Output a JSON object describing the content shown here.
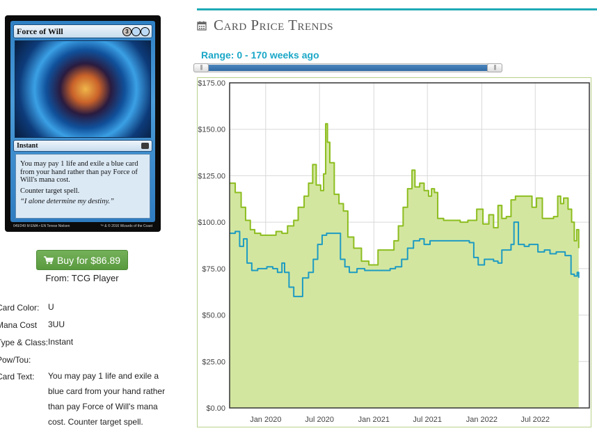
{
  "card": {
    "name": "Force of Will",
    "mana": [
      {
        "symbol": "3",
        "color": "generic"
      },
      {
        "symbol": "",
        "color": "blue"
      },
      {
        "symbol": "",
        "color": "blue"
      }
    ],
    "type_line": "Instant",
    "rules_text": "You may pay 1 life and exile a blue card from your hand rather than pay Force of Will's mana cost.",
    "rules_text_2": "Counter target spell.",
    "flavor_text": "“I alone determine my destiny.”",
    "footer_left": "049/249 M",
    "footer_set": "EMA • EN",
    "footer_artist": "Terese Nielsen",
    "footer_copyright": "™ & © 2016 Wizards of the Coast"
  },
  "buy": {
    "label": "Buy for $86.89",
    "icon": "cart-icon",
    "source": "From: TCG Player",
    "accent": "#5a9a3f"
  },
  "details": [
    {
      "label": "Card Color:",
      "value": "U"
    },
    {
      "label": "Mana Cost",
      "value": "3UU"
    },
    {
      "label": "Type & Class:",
      "value": "Instant"
    },
    {
      "label": "Pow/Tou:",
      "value": ""
    },
    {
      "label": "Card Text:",
      "value": "You may pay 1 life and exile a blue card from your hand rather than pay Force of Will's mana cost. Counter target spell."
    }
  ],
  "section": {
    "title": "Card Price Trends",
    "icon": "calendar-icon",
    "rule_color": "#1eaab7"
  },
  "range": {
    "label": "Range: 0 - 170 weeks ago",
    "min": 0,
    "max": 170
  },
  "chart_data": {
    "type": "area",
    "title": "",
    "xlabel": "",
    "ylabel": "",
    "ylim": [
      0,
      175
    ],
    "y_ticks": [
      "$0.00",
      "$25.00",
      "$50.00",
      "$75.00",
      "$100.00",
      "$125.00",
      "$150.00",
      "$175.00"
    ],
    "x_ticks": [
      "Jan 2020",
      "Jul 2020",
      "Jan 2021",
      "Jul 2021",
      "Jan 2022",
      "Jul 2022"
    ],
    "x_range": [
      "2019-09",
      "2022-12"
    ],
    "grid": true,
    "series": [
      {
        "color": "#8cbd1e",
        "fill": "#d3e6a0",
        "points": [
          [
            "2019-09-01",
            121
          ],
          [
            "2019-09-20",
            116
          ],
          [
            "2019-10-10",
            108
          ],
          [
            "2019-10-25",
            101
          ],
          [
            "2019-11-10",
            96
          ],
          [
            "2019-11-25",
            94
          ],
          [
            "2019-12-15",
            93
          ],
          [
            "2020-01-10",
            93
          ],
          [
            "2020-02-05",
            95
          ],
          [
            "2020-02-25",
            94
          ],
          [
            "2020-03-15",
            98
          ],
          [
            "2020-04-05",
            101
          ],
          [
            "2020-04-20",
            108
          ],
          [
            "2020-05-10",
            114
          ],
          [
            "2020-05-25",
            121
          ],
          [
            "2020-06-08",
            131
          ],
          [
            "2020-06-20",
            120
          ],
          [
            "2020-07-05",
            117
          ],
          [
            "2020-07-15",
            126
          ],
          [
            "2020-07-22",
            153
          ],
          [
            "2020-07-28",
            143
          ],
          [
            "2020-08-05",
            132
          ],
          [
            "2020-08-20",
            115
          ],
          [
            "2020-09-05",
            110
          ],
          [
            "2020-09-20",
            106
          ],
          [
            "2020-10-05",
            92
          ],
          [
            "2020-10-25",
            86
          ],
          [
            "2020-11-20",
            79
          ],
          [
            "2020-12-15",
            77
          ],
          [
            "2021-01-15",
            85
          ],
          [
            "2021-02-15",
            85
          ],
          [
            "2021-03-10",
            90
          ],
          [
            "2021-03-25",
            98
          ],
          [
            "2021-04-10",
            108
          ],
          [
            "2021-04-25",
            118
          ],
          [
            "2021-05-10",
            128
          ],
          [
            "2021-05-20",
            119
          ],
          [
            "2021-06-05",
            121
          ],
          [
            "2021-06-20",
            117
          ],
          [
            "2021-07-05",
            114
          ],
          [
            "2021-07-15",
            118
          ],
          [
            "2021-07-25",
            116
          ],
          [
            "2021-08-05",
            102
          ],
          [
            "2021-08-25",
            101
          ],
          [
            "2021-09-20",
            101
          ],
          [
            "2021-10-20",
            100
          ],
          [
            "2021-11-15",
            101
          ],
          [
            "2021-12-15",
            107
          ],
          [
            "2022-01-05",
            99
          ],
          [
            "2022-01-25",
            104
          ],
          [
            "2022-02-10",
            97
          ],
          [
            "2022-02-25",
            109
          ],
          [
            "2022-03-10",
            102
          ],
          [
            "2022-03-25",
            103
          ],
          [
            "2022-04-10",
            112
          ],
          [
            "2022-04-25",
            114
          ],
          [
            "2022-05-15",
            114
          ],
          [
            "2022-06-05",
            114
          ],
          [
            "2022-06-20",
            108
          ],
          [
            "2022-07-05",
            113
          ],
          [
            "2022-07-25",
            102
          ],
          [
            "2022-08-15",
            102
          ],
          [
            "2022-09-01",
            103
          ],
          [
            "2022-09-15",
            114
          ],
          [
            "2022-09-25",
            110
          ],
          [
            "2022-10-05",
            113
          ],
          [
            "2022-10-20",
            107
          ],
          [
            "2022-11-01",
            100
          ],
          [
            "2022-11-10",
            90
          ],
          [
            "2022-11-18",
            96
          ],
          [
            "2022-11-25",
            86
          ]
        ]
      },
      {
        "color": "#1d9bc2",
        "points": [
          [
            "2019-09-01",
            94
          ],
          [
            "2019-09-20",
            95
          ],
          [
            "2019-10-05",
            87
          ],
          [
            "2019-10-18",
            91
          ],
          [
            "2019-10-30",
            78
          ],
          [
            "2019-11-15",
            74
          ],
          [
            "2019-12-05",
            75
          ],
          [
            "2020-01-05",
            76
          ],
          [
            "2020-01-25",
            75
          ],
          [
            "2020-02-10",
            73
          ],
          [
            "2020-02-25",
            78
          ],
          [
            "2020-03-05",
            73
          ],
          [
            "2020-03-20",
            65
          ],
          [
            "2020-04-05",
            60
          ],
          [
            "2020-04-20",
            60
          ],
          [
            "2020-05-05",
            70
          ],
          [
            "2020-05-25",
            73
          ],
          [
            "2020-06-10",
            80
          ],
          [
            "2020-06-25",
            88
          ],
          [
            "2020-07-10",
            93
          ],
          [
            "2020-07-25",
            94
          ],
          [
            "2020-08-15",
            94
          ],
          [
            "2020-09-01",
            94
          ],
          [
            "2020-09-10",
            80
          ],
          [
            "2020-09-25",
            76
          ],
          [
            "2020-10-10",
            73
          ],
          [
            "2020-11-05",
            75
          ],
          [
            "2020-12-01",
            74
          ],
          [
            "2021-01-05",
            74
          ],
          [
            "2021-02-01",
            74
          ],
          [
            "2021-02-25",
            75
          ],
          [
            "2021-03-15",
            76
          ],
          [
            "2021-04-05",
            80
          ],
          [
            "2021-04-25",
            86
          ],
          [
            "2021-05-15",
            90
          ],
          [
            "2021-06-05",
            91
          ],
          [
            "2021-06-20",
            88
          ],
          [
            "2021-07-10",
            90
          ],
          [
            "2021-08-01",
            90
          ],
          [
            "2021-09-01",
            90
          ],
          [
            "2021-10-01",
            90
          ],
          [
            "2021-11-01",
            90
          ],
          [
            "2021-11-20",
            89
          ],
          [
            "2021-12-05",
            81
          ],
          [
            "2021-12-20",
            77
          ],
          [
            "2022-01-10",
            80
          ],
          [
            "2022-01-25",
            80
          ],
          [
            "2022-02-10",
            79
          ],
          [
            "2022-02-25",
            78
          ],
          [
            "2022-03-10",
            85
          ],
          [
            "2022-03-25",
            85
          ],
          [
            "2022-04-10",
            88
          ],
          [
            "2022-04-20",
            100
          ],
          [
            "2022-05-05",
            88
          ],
          [
            "2022-05-25",
            87
          ],
          [
            "2022-06-10",
            88
          ],
          [
            "2022-06-25",
            88
          ],
          [
            "2022-07-10",
            84
          ],
          [
            "2022-08-01",
            85
          ],
          [
            "2022-08-20",
            83
          ],
          [
            "2022-09-10",
            84
          ],
          [
            "2022-09-25",
            84
          ],
          [
            "2022-10-10",
            82
          ],
          [
            "2022-10-20",
            82
          ],
          [
            "2022-10-30",
            72
          ],
          [
            "2022-11-10",
            71
          ],
          [
            "2022-11-20",
            73
          ],
          [
            "2022-11-25",
            70
          ]
        ]
      }
    ]
  }
}
